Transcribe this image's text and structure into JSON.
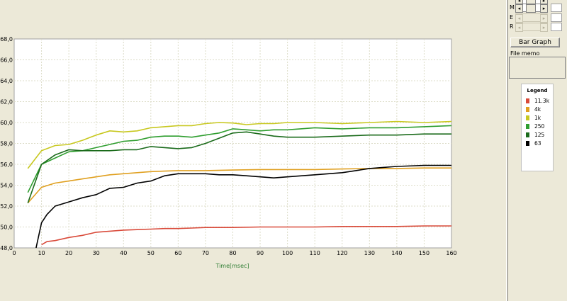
{
  "chart_data": {
    "type": "line",
    "xlabel": "Time[msec]",
    "xlim": [
      0,
      160
    ],
    "ylim": [
      48,
      68
    ],
    "x_ticks": [
      0,
      10,
      20,
      30,
      40,
      50,
      60,
      70,
      80,
      90,
      100,
      110,
      120,
      130,
      140,
      150,
      160
    ],
    "y_ticks": [
      "48,0",
      "50,0",
      "52,0",
      "54,0",
      "56,0",
      "58,0",
      "60,0",
      "62,0",
      "64,0",
      "66,0",
      "68,0"
    ],
    "grid": true,
    "series": [
      {
        "name": "11.3k",
        "color": "#d94a3a",
        "points": [
          [
            10,
            48.3
          ],
          [
            12,
            48.6
          ],
          [
            15,
            48.7
          ],
          [
            20,
            49.0
          ],
          [
            25,
            49.2
          ],
          [
            30,
            49.5
          ],
          [
            35,
            49.6
          ],
          [
            40,
            49.7
          ],
          [
            45,
            49.75
          ],
          [
            50,
            49.8
          ],
          [
            55,
            49.85
          ],
          [
            60,
            49.85
          ],
          [
            65,
            49.9
          ],
          [
            70,
            49.95
          ],
          [
            80,
            49.95
          ],
          [
            90,
            50.0
          ],
          [
            100,
            50.0
          ],
          [
            110,
            50.0
          ],
          [
            120,
            50.05
          ],
          [
            130,
            50.05
          ],
          [
            140,
            50.05
          ],
          [
            150,
            50.1
          ],
          [
            160,
            50.1
          ]
        ]
      },
      {
        "name": "4k",
        "color": "#e0a020",
        "points": [
          [
            5,
            52.3
          ],
          [
            10,
            53.8
          ],
          [
            15,
            54.2
          ],
          [
            20,
            54.4
          ],
          [
            25,
            54.6
          ],
          [
            30,
            54.8
          ],
          [
            35,
            55.0
          ],
          [
            40,
            55.1
          ],
          [
            45,
            55.2
          ],
          [
            50,
            55.3
          ],
          [
            55,
            55.35
          ],
          [
            60,
            55.4
          ],
          [
            70,
            55.4
          ],
          [
            80,
            55.45
          ],
          [
            90,
            55.5
          ],
          [
            100,
            55.5
          ],
          [
            110,
            55.5
          ],
          [
            120,
            55.55
          ],
          [
            130,
            55.6
          ],
          [
            140,
            55.6
          ],
          [
            150,
            55.65
          ],
          [
            160,
            55.65
          ]
        ]
      },
      {
        "name": "1k",
        "color": "#c8c820",
        "points": [
          [
            5,
            55.6
          ],
          [
            10,
            57.3
          ],
          [
            15,
            57.8
          ],
          [
            20,
            57.9
          ],
          [
            25,
            58.3
          ],
          [
            30,
            58.8
          ],
          [
            35,
            59.2
          ],
          [
            40,
            59.1
          ],
          [
            45,
            59.2
          ],
          [
            50,
            59.5
          ],
          [
            55,
            59.6
          ],
          [
            60,
            59.7
          ],
          [
            65,
            59.7
          ],
          [
            70,
            59.9
          ],
          [
            75,
            60.0
          ],
          [
            80,
            59.95
          ],
          [
            85,
            59.8
          ],
          [
            90,
            59.9
          ],
          [
            95,
            59.9
          ],
          [
            100,
            60.0
          ],
          [
            110,
            60.0
          ],
          [
            120,
            59.9
          ],
          [
            130,
            60.0
          ],
          [
            140,
            60.1
          ],
          [
            150,
            60.0
          ],
          [
            160,
            60.1
          ]
        ]
      },
      {
        "name": "250",
        "color": "#2f9e2f",
        "points": [
          [
            5,
            53.3
          ],
          [
            10,
            56.0
          ],
          [
            15,
            56.6
          ],
          [
            20,
            57.2
          ],
          [
            25,
            57.3
          ],
          [
            30,
            57.6
          ],
          [
            35,
            57.9
          ],
          [
            40,
            58.2
          ],
          [
            45,
            58.3
          ],
          [
            50,
            58.6
          ],
          [
            55,
            58.7
          ],
          [
            60,
            58.7
          ],
          [
            65,
            58.6
          ],
          [
            70,
            58.8
          ],
          [
            75,
            59.0
          ],
          [
            80,
            59.4
          ],
          [
            85,
            59.3
          ],
          [
            90,
            59.2
          ],
          [
            95,
            59.3
          ],
          [
            100,
            59.3
          ],
          [
            110,
            59.5
          ],
          [
            120,
            59.4
          ],
          [
            130,
            59.5
          ],
          [
            140,
            59.5
          ],
          [
            150,
            59.6
          ],
          [
            160,
            59.7
          ]
        ]
      },
      {
        "name": "125",
        "color": "#1b6b1b",
        "points": [
          [
            5,
            52.3
          ],
          [
            10,
            56.0
          ],
          [
            15,
            56.9
          ],
          [
            20,
            57.4
          ],
          [
            25,
            57.3
          ],
          [
            30,
            57.3
          ],
          [
            35,
            57.3
          ],
          [
            40,
            57.4
          ],
          [
            45,
            57.4
          ],
          [
            50,
            57.7
          ],
          [
            55,
            57.6
          ],
          [
            60,
            57.5
          ],
          [
            65,
            57.6
          ],
          [
            70,
            58.0
          ],
          [
            75,
            58.5
          ],
          [
            80,
            59.0
          ],
          [
            85,
            59.1
          ],
          [
            90,
            58.9
          ],
          [
            95,
            58.7
          ],
          [
            100,
            58.6
          ],
          [
            110,
            58.6
          ],
          [
            120,
            58.7
          ],
          [
            130,
            58.8
          ],
          [
            140,
            58.8
          ],
          [
            150,
            58.9
          ],
          [
            160,
            58.9
          ]
        ]
      },
      {
        "name": "63",
        "color": "#000000",
        "points": [
          [
            8,
            48.0
          ],
          [
            10,
            50.4
          ],
          [
            12,
            51.2
          ],
          [
            15,
            52.0
          ],
          [
            20,
            52.4
          ],
          [
            25,
            52.8
          ],
          [
            30,
            53.1
          ],
          [
            35,
            53.7
          ],
          [
            40,
            53.8
          ],
          [
            45,
            54.2
          ],
          [
            50,
            54.4
          ],
          [
            55,
            54.9
          ],
          [
            60,
            55.1
          ],
          [
            65,
            55.1
          ],
          [
            70,
            55.1
          ],
          [
            75,
            55.0
          ],
          [
            80,
            55.0
          ],
          [
            85,
            54.9
          ],
          [
            90,
            54.8
          ],
          [
            95,
            54.7
          ],
          [
            100,
            54.8
          ],
          [
            110,
            55.0
          ],
          [
            120,
            55.2
          ],
          [
            125,
            55.4
          ],
          [
            130,
            55.6
          ],
          [
            135,
            55.7
          ],
          [
            140,
            55.8
          ],
          [
            150,
            55.9
          ],
          [
            160,
            55.9
          ]
        ]
      }
    ]
  },
  "legend": {
    "title": "Legend",
    "items": [
      {
        "label": "11.3k",
        "color": "#d94a3a"
      },
      {
        "label": "4k",
        "color": "#e0a020"
      },
      {
        "label": "1k",
        "color": "#c8c820"
      },
      {
        "label": "250",
        "color": "#2f9e2f"
      },
      {
        "label": "125",
        "color": "#1b6b1b"
      },
      {
        "label": "63",
        "color": "#000000"
      }
    ]
  },
  "side_panel": {
    "sliders": [
      {
        "letter": "",
        "enabled": true
      },
      {
        "letter": "M",
        "enabled": true
      },
      {
        "letter": "E",
        "enabled": false
      },
      {
        "letter": "R",
        "enabled": false
      }
    ],
    "bar_graph_label": "Bar Graph",
    "file_memo_label": "File memo"
  },
  "icons": {
    "left_arrow": "◂",
    "right_arrow": "▸"
  }
}
